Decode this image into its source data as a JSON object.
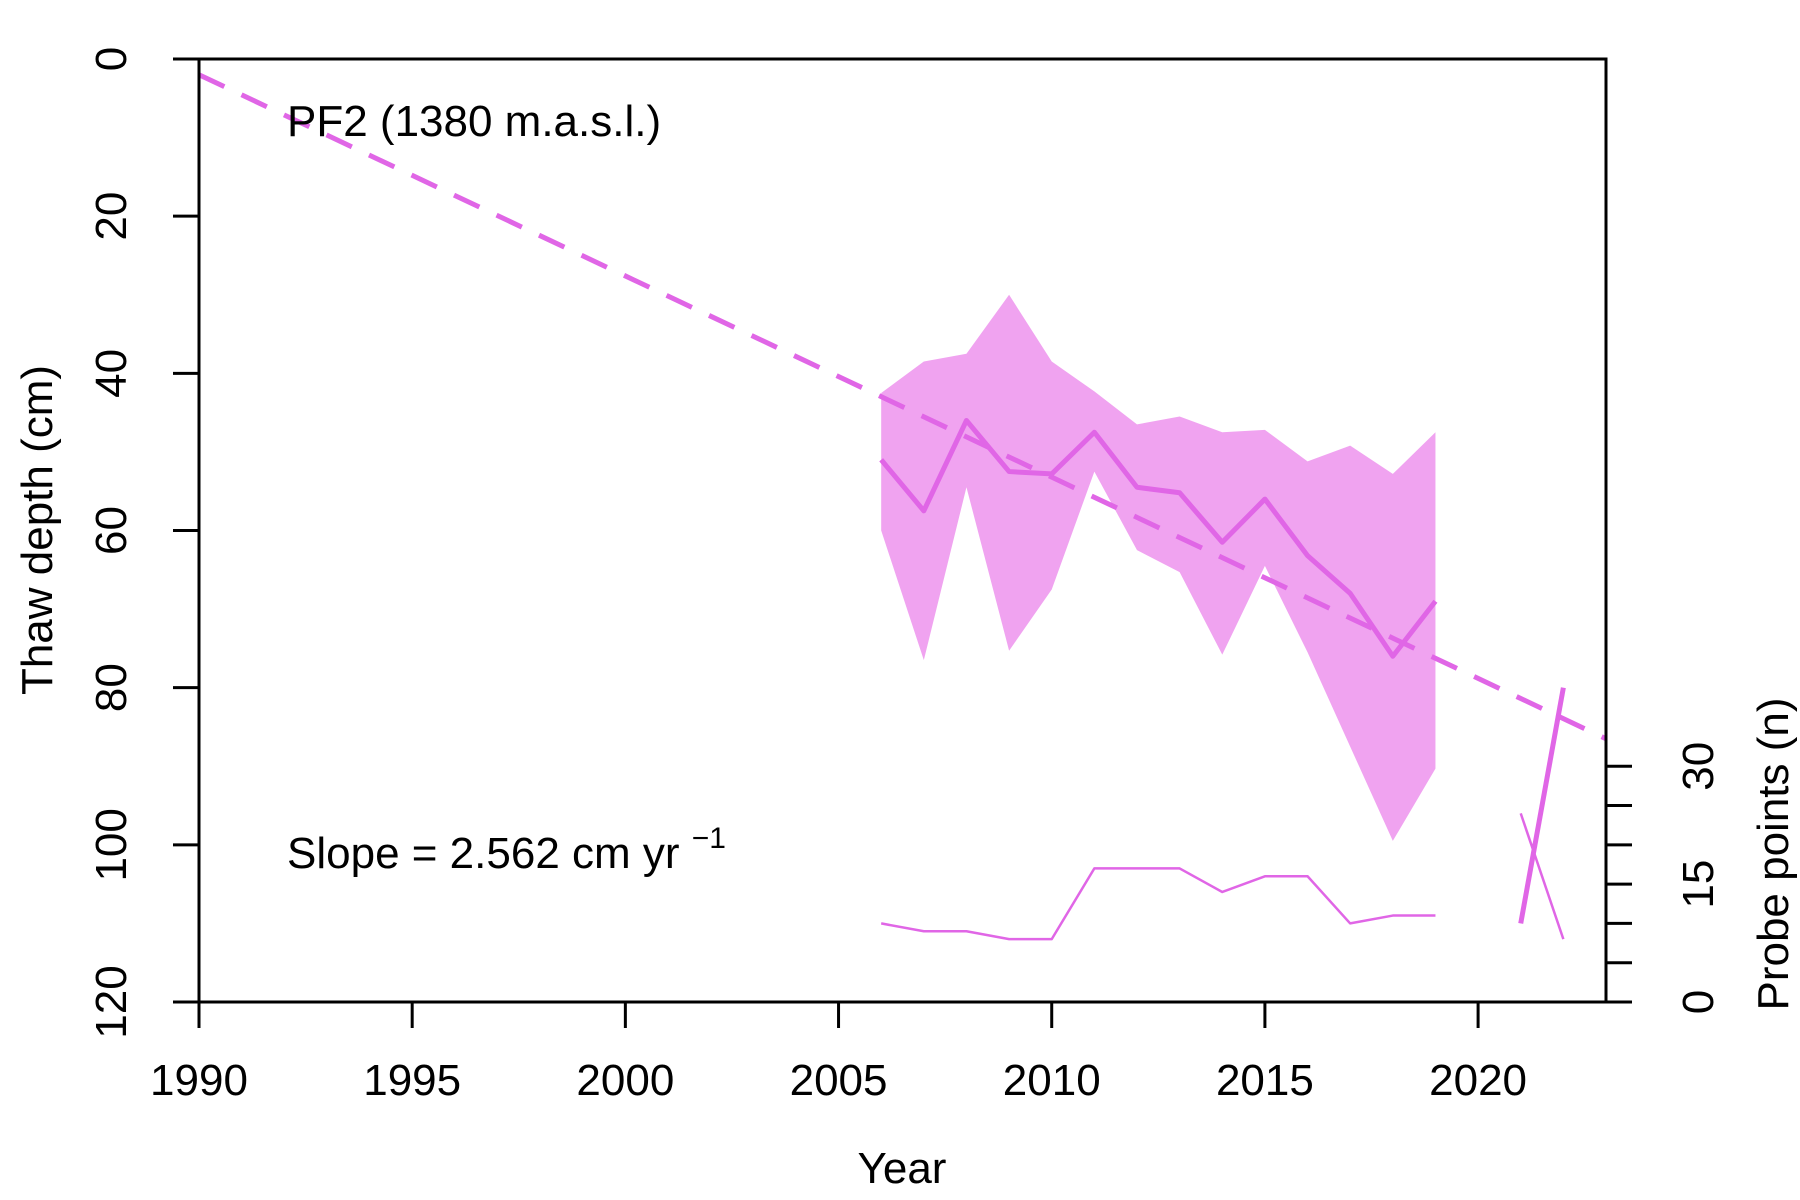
{
  "chart_data": {
    "type": "line",
    "annotation_title": "PF2 (1380 m.a.s.l.)",
    "annotation_slope": {
      "prefix": "Slope =  2.562 cm yr",
      "superscript": "−1"
    },
    "xlabel": "Year",
    "ylabel": "Thaw depth (cm)",
    "ylabel_right": "Probe points (n)",
    "xlim": [
      1990,
      2023
    ],
    "ylim": [
      120,
      0
    ],
    "ylim_right": [
      0,
      120
    ],
    "x_ticks": [
      "1990",
      "1995",
      "2000",
      "2005",
      "2010",
      "2015",
      "2020"
    ],
    "y_ticks": [
      "0",
      "20",
      "40",
      "60",
      "80",
      "100",
      "120"
    ],
    "y_ticks_right_labeled": [
      "0",
      "15",
      "30"
    ],
    "y_ticks_right_all": [
      0,
      5,
      10,
      15,
      20,
      25,
      30
    ],
    "color": "#e066e6",
    "band_color": "#f0a3f0",
    "series": [
      {
        "kind": "mean",
        "x": [
          2006,
          2007,
          2008,
          2009,
          2010,
          2011,
          2012,
          2013,
          2014,
          2015,
          2016,
          2017,
          2018,
          2019
        ],
        "values": [
          51,
          57.5,
          46,
          52.5,
          52.8,
          47.5,
          54.5,
          55.2,
          61.5,
          56,
          63.2,
          68,
          76,
          69
        ]
      },
      {
        "kind": "range_upper",
        "x": [
          2006,
          2007,
          2008,
          2009,
          2010,
          2011,
          2012,
          2013,
          2014,
          2015,
          2016,
          2017,
          2018,
          2019
        ],
        "values": [
          42.5,
          38.5,
          37.5,
          30,
          38.5,
          42.3,
          46.5,
          45.5,
          47.5,
          47.2,
          51.2,
          49.2,
          52.8,
          47.5
        ]
      },
      {
        "kind": "range_lower",
        "x": [
          2006,
          2007,
          2008,
          2009,
          2010,
          2011,
          2012,
          2013,
          2014,
          2015,
          2016,
          2017,
          2018,
          2019
        ],
        "values": [
          60,
          76.5,
          54.5,
          75.3,
          67.5,
          52.5,
          62.5,
          65.3,
          75.8,
          64.5,
          75.5,
          87.5,
          99.5,
          90.3
        ]
      },
      {
        "kind": "trend",
        "x": [
          1990,
          2023
        ],
        "values": [
          2,
          86.5
        ]
      },
      {
        "kind": "mean_recent",
        "x": [
          2021,
          2022
        ],
        "values": [
          110,
          80
        ]
      },
      {
        "kind": "probe_points",
        "axis": "right",
        "x": [
          2006,
          2007,
          2008,
          2009,
          2010,
          2011,
          2012,
          2013,
          2014,
          2015,
          2016,
          2017,
          2018,
          2019
        ],
        "values": [
          10,
          9,
          9,
          8,
          8,
          17,
          17,
          17,
          14,
          16,
          16,
          10,
          11,
          11
        ]
      },
      {
        "kind": "probe_points_recent",
        "axis": "right",
        "x": [
          2021,
          2022
        ],
        "values": [
          24,
          8
        ]
      }
    ]
  }
}
